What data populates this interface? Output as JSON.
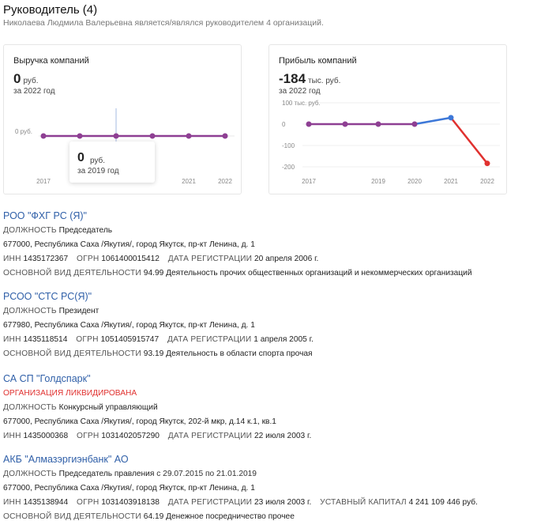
{
  "header": {
    "title": "Руководитель (4)",
    "subtitle": "Николаева Людмила Валерьевна является/являлся руководителем 4 организаций."
  },
  "revenue_card": {
    "title": "Выручка компаний",
    "value": "0",
    "unit": "руб.",
    "period": "за 2022 год",
    "tooltip": {
      "value": "0",
      "unit": "руб.",
      "period": "за 2019 год"
    },
    "chart_data": {
      "type": "line",
      "categories": [
        "2017",
        "2018",
        "2019",
        "2020",
        "2021",
        "2022"
      ],
      "x_tick_labels": [
        "2017",
        "",
        "",
        "",
        "2021",
        "2022"
      ],
      "y_tick_labels": [
        "0 руб."
      ],
      "series": [
        {
          "values": [
            0,
            0,
            0,
            0,
            0,
            0
          ],
          "color": "#8e3f93"
        }
      ],
      "ylim": [
        -1,
        1
      ],
      "grid": true,
      "highlight_category": "2019"
    }
  },
  "profit_card": {
    "title": "Прибыль компаний",
    "value": "-184",
    "unit": "тыс. руб.",
    "period": "за 2022 год",
    "chart_data": {
      "type": "line",
      "categories": [
        "2017",
        "2018",
        "2019",
        "2020",
        "2021",
        "2022"
      ],
      "x_tick_labels": [
        "2017",
        "",
        "2019",
        "2020",
        "2021",
        "2022"
      ],
      "y_ticks": [
        100,
        0,
        -100,
        -200
      ],
      "y_tick_labels": [
        "100 тыс. руб.",
        "0",
        "-100",
        "-200"
      ],
      "series": [
        {
          "values": [
            0,
            0,
            0,
            0,
            30,
            -184
          ]
        }
      ],
      "colors": {
        "flat": "#8e3f93",
        "rise": "#3d78d8",
        "fall": "#e0312f"
      },
      "ylim": [
        -220,
        100
      ],
      "grid": true
    }
  },
  "orgs": [
    {
      "name": "РОО \"ФХГ РС (Я)\"",
      "position_label": "ДОЛЖНОСТЬ",
      "position": "Председатель",
      "address": "677000, Республика Саха /Якутия/, город Якутск, пр-кт Ленина, д. 1",
      "inn_label": "ИНН",
      "inn": "1435172367",
      "ogrn_label": "ОГРН",
      "ogrn": "1061400015412",
      "reg_label": "ДАТА РЕГИСТРАЦИИ",
      "reg": "20 апреля 2006 г.",
      "activity_label": "ОСНОВНОЙ ВИД ДЕЯТЕЛЬНОСТИ",
      "activity": "94.99 Деятельность прочих общественных организаций и некоммерческих организаций"
    },
    {
      "name": "РСОО \"СТС РС(Я)\"",
      "position_label": "ДОЛЖНОСТЬ",
      "position": "Президент",
      "address": "677980, Республика Саха /Якутия/, город Якутск, пр-кт Ленина, д. 1",
      "inn_label": "ИНН",
      "inn": "1435118514",
      "ogrn_label": "ОГРН",
      "ogrn": "1051405915747",
      "reg_label": "ДАТА РЕГИСТРАЦИИ",
      "reg": "1 апреля 2005 г.",
      "activity_label": "ОСНОВНОЙ ВИД ДЕЯТЕЛЬНОСТИ",
      "activity": "93.19 Деятельность в области спорта прочая"
    },
    {
      "name": "СА СП \"Голдспарк\"",
      "status": "ОРГАНИЗАЦИЯ ЛИКВИДИРОВАНА",
      "position_label": "ДОЛЖНОСТЬ",
      "position": "Конкурсный управляющий",
      "address": "677000, Республика Саха /Якутия/, город Якутск, 202-й мкр, д.14 к.1, кв.1",
      "inn_label": "ИНН",
      "inn": "1435000368",
      "ogrn_label": "ОГРН",
      "ogrn": "1031402057290",
      "reg_label": "ДАТА РЕГИСТРАЦИИ",
      "reg": "22 июля 2003 г."
    },
    {
      "name": "АКБ \"Алмазэргиэнбанк\" АО",
      "position_label": "ДОЛЖНОСТЬ",
      "position": "Председатель правления",
      "position_period": "с 29.07.2015 по 21.01.2019",
      "address": "677000, Республика Саха /Якутия/, город Якутск, пр-кт Ленина, д. 1",
      "inn_label": "ИНН",
      "inn": "1435138944",
      "ogrn_label": "ОГРН",
      "ogrn": "1031403918138",
      "reg_label": "ДАТА РЕГИСТРАЦИИ",
      "reg": "23 июля 2003 г.",
      "capital_label": "УСТАВНЫЙ КАПИТАЛ",
      "capital": "4 241 109 446 руб.",
      "activity_label": "ОСНОВНОЙ ВИД ДЕЯТЕЛЬНОСТИ",
      "activity": "64.19 Денежное посредничество прочее"
    }
  ]
}
